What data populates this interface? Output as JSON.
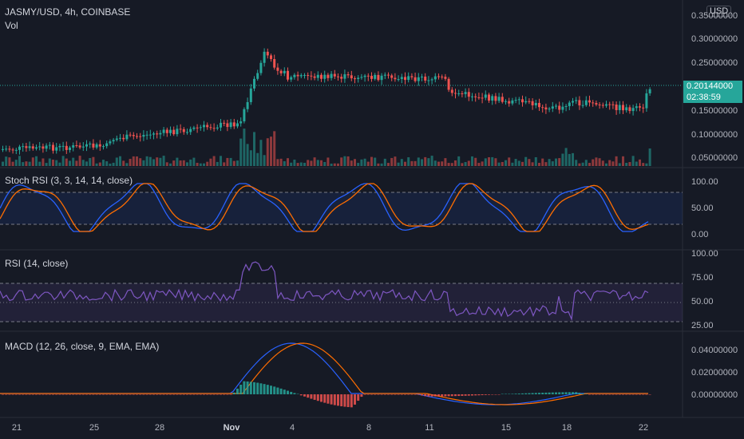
{
  "header": {
    "symbol": "JASMY/USD, 4h, COINBASE",
    "volume_label": "Vol",
    "currency": "USD"
  },
  "price_axis": {
    "labels": [
      "0.35000000",
      "0.30000000",
      "0.25000000",
      "0.15000000",
      "0.10000000",
      "0.05000000"
    ],
    "current_price": "0.20144000",
    "countdown": "02:38:59"
  },
  "stoch_rsi": {
    "title": "Stoch RSI (3, 3, 14, 14, close)",
    "labels": [
      "100.00",
      "50.00",
      "0.00"
    ]
  },
  "rsi": {
    "title": "RSI (14, close)",
    "labels": [
      "100.00",
      "75.00",
      "50.00",
      "25.00"
    ]
  },
  "macd": {
    "title": "MACD (12, 26, close, 9, EMA, EMA)",
    "labels": [
      "0.04000000",
      "0.02000000",
      "0.00000000"
    ]
  },
  "time_axis": [
    "21",
    "25",
    "28",
    "Nov",
    "4",
    "8",
    "11",
    "15",
    "18",
    "22"
  ],
  "colors": {
    "background": "#161a25",
    "up": "#26a69a",
    "down": "#ef5350",
    "stoch_k": "#2962ff",
    "stoch_d": "#ff6d00",
    "rsi_line": "#7e57c2"
  }
}
